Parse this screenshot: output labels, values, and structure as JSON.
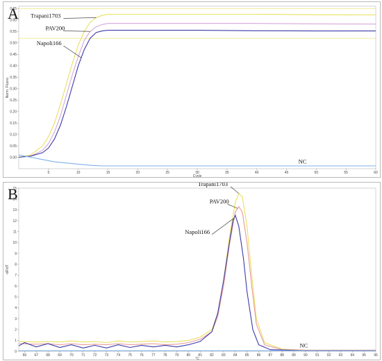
{
  "chart_data": [
    {
      "panel": "A",
      "type": "line",
      "xlabel": "Cycle",
      "ylabel": "Norm. Fluoro.",
      "xlim": [
        0,
        60
      ],
      "ylim": [
        -0.05,
        0.66
      ],
      "x_ticks": [
        "5",
        "10",
        "15",
        "20",
        "25",
        "30",
        "35",
        "40",
        "45",
        "50",
        "55",
        "60"
      ],
      "y_ticks": [
        "0.00",
        "0.05",
        "0.10",
        "0.15",
        "0.20",
        "0.25",
        "0.30",
        "0.35",
        "0.40",
        "0.45",
        "0.50",
        "0.55",
        "0.60",
        "0.65"
      ],
      "series": [
        {
          "name": "Trapani1703",
          "color": "#e8e060",
          "x": [
            0,
            2,
            4,
            5,
            6,
            7,
            8,
            9,
            10,
            11,
            12,
            13,
            14,
            15,
            16,
            18,
            20,
            30,
            40,
            50,
            60
          ],
          "y": [
            0.0,
            0.01,
            0.05,
            0.09,
            0.15,
            0.23,
            0.32,
            0.41,
            0.49,
            0.55,
            0.59,
            0.61,
            0.62,
            0.625,
            0.625,
            0.625,
            0.625,
            0.625,
            0.625,
            0.623,
            0.622
          ]
        },
        {
          "name": "PAV200",
          "color": "#d6a8d6",
          "x": [
            0,
            2,
            4,
            5,
            6,
            7,
            8,
            9,
            10,
            11,
            12,
            13,
            14,
            15,
            16,
            18,
            20,
            30,
            40,
            50,
            60
          ],
          "y": [
            0.0,
            0.005,
            0.03,
            0.06,
            0.11,
            0.18,
            0.27,
            0.36,
            0.44,
            0.51,
            0.55,
            0.57,
            0.58,
            0.585,
            0.585,
            0.585,
            0.585,
            0.585,
            0.585,
            0.583,
            0.582
          ]
        },
        {
          "name": "Napoli166",
          "color": "#3a3aa8",
          "x": [
            0,
            2,
            4,
            5,
            6,
            7,
            8,
            9,
            10,
            11,
            12,
            13,
            14,
            15,
            16,
            18,
            20,
            30,
            40,
            50,
            60
          ],
          "y": [
            0.0,
            0.005,
            0.02,
            0.04,
            0.08,
            0.14,
            0.22,
            0.31,
            0.4,
            0.47,
            0.52,
            0.545,
            0.552,
            0.555,
            0.555,
            0.555,
            0.555,
            0.555,
            0.553,
            0.552,
            0.552
          ]
        },
        {
          "name": "NC",
          "color": "#7fb0e8",
          "x": [
            0,
            2,
            4,
            6,
            8,
            10,
            12,
            14,
            20,
            30,
            40,
            50,
            60
          ],
          "y": [
            0.01,
            0.0,
            -0.01,
            -0.02,
            -0.025,
            -0.03,
            -0.035,
            -0.038,
            -0.038,
            -0.038,
            -0.038,
            -0.038,
            -0.038
          ]
        }
      ],
      "ref_lines": [
        {
          "color": "#e8e060",
          "y": 0.65
        },
        {
          "color": "#e8e060",
          "y": 0.52
        }
      ],
      "labels": [
        {
          "text": "Trapani1703",
          "series": "Trapani1703",
          "at_x": 13.0,
          "text_x": 2.0,
          "text_y": 0.61
        },
        {
          "text": "PAV200",
          "series": "PAV200",
          "at_x": 12.0,
          "text_x": 4.5,
          "text_y": 0.555
        },
        {
          "text": "Napoli166",
          "series": "Napoli166",
          "at_x": 10.5,
          "text_x": 3.0,
          "text_y": 0.49
        },
        {
          "text": "NC",
          "series": "NC",
          "at_x": 47.0,
          "text_x": 47.0,
          "text_y": -0.028
        }
      ]
    },
    {
      "panel": "B",
      "type": "line",
      "xlabel": "°C",
      "ylabel": "-dF/dT",
      "xlim": [
        65.5,
        96
      ],
      "ylim": [
        0,
        15
      ],
      "x_ticks": [
        "66",
        "67",
        "68",
        "69",
        "70",
        "71",
        "72",
        "73",
        "74",
        "75",
        "76",
        "77",
        "78",
        "79",
        "80",
        "81",
        "82",
        "83",
        "84",
        "85",
        "86",
        "87",
        "88",
        "89",
        "90",
        "91",
        "92",
        "93",
        "94",
        "95",
        "96"
      ],
      "y_ticks": [
        "0",
        "1",
        "2",
        "3",
        "4",
        "5",
        "6",
        "7",
        "8",
        "9",
        "10",
        "11",
        "12",
        "13",
        "14",
        "15"
      ],
      "series": [
        {
          "name": "Trapani1703",
          "color": "#e8e060",
          "x": [
            65.5,
            67,
            68,
            69,
            70,
            71,
            72,
            73,
            74,
            75,
            76,
            77,
            78,
            79,
            80,
            81,
            82,
            82.5,
            83,
            83.5,
            84,
            84.3,
            84.6,
            85,
            85.4,
            85.8,
            86.5,
            88,
            90,
            96
          ],
          "y": [
            0.9,
            0.85,
            0.9,
            0.85,
            0.95,
            0.85,
            0.9,
            0.8,
            0.95,
            0.85,
            0.9,
            0.95,
            0.85,
            0.9,
            1.0,
            1.3,
            2.0,
            3.5,
            6.5,
            10.5,
            13.7,
            14.5,
            14.2,
            11.5,
            7.0,
            3.0,
            0.8,
            0.2,
            0.1,
            0.1
          ]
        },
        {
          "name": "PAV200",
          "color": "#e89a9a",
          "x": [
            65.5,
            67,
            68,
            69,
            70,
            71,
            72,
            73,
            74,
            75,
            76,
            77,
            78,
            79,
            80,
            81,
            82,
            82.5,
            83,
            83.5,
            84,
            84.3,
            84.6,
            85,
            85.4,
            85.8,
            86.5,
            88,
            90,
            96
          ],
          "y": [
            0.7,
            0.65,
            0.7,
            0.6,
            0.7,
            0.6,
            0.65,
            0.6,
            0.7,
            0.6,
            0.65,
            0.7,
            0.6,
            0.65,
            0.8,
            1.1,
            1.8,
            3.2,
            6.0,
            9.8,
            12.8,
            13.3,
            12.8,
            10.0,
            6.0,
            2.5,
            0.6,
            0.15,
            0.1,
            0.1
          ]
        },
        {
          "name": "Napoli166",
          "color": "#3a3aa8",
          "x": [
            65.5,
            66,
            67,
            68,
            69,
            70,
            71,
            72,
            73,
            74,
            75,
            76,
            77,
            78,
            79,
            80,
            81,
            82,
            82.5,
            83,
            83.5,
            83.8,
            84,
            84.3,
            84.7,
            85,
            85.5,
            86,
            87,
            90,
            96
          ],
          "y": [
            0.5,
            0.8,
            0.4,
            0.7,
            0.35,
            0.6,
            0.3,
            0.55,
            0.3,
            0.6,
            0.35,
            0.55,
            0.4,
            0.55,
            0.4,
            0.6,
            0.9,
            1.8,
            3.5,
            6.5,
            10.0,
            12.0,
            12.5,
            11.5,
            8.5,
            5.5,
            2.0,
            0.6,
            0.15,
            0.05,
            0.05
          ]
        },
        {
          "name": "NC",
          "color": "#7fb0e8",
          "x": [
            65.5,
            96
          ],
          "y": [
            0.05,
            0.05
          ]
        }
      ],
      "labels": [
        {
          "text": "Trapani1703",
          "series": "Trapani1703",
          "at_x": 84.3,
          "text_x": 80.8,
          "text_y": 15.2
        },
        {
          "text": "PAV200",
          "series": "PAV200",
          "at_x": 84.2,
          "text_x": 81.8,
          "text_y": 13.6
        },
        {
          "text": "Napoli166",
          "series": "Napoli166",
          "at_x": 83.9,
          "text_x": 79.7,
          "text_y": 10.8
        },
        {
          "text": "NC",
          "series": "NC",
          "at_x": 89.5,
          "text_x": 89.5,
          "text_y": 0.35
        }
      ]
    }
  ]
}
